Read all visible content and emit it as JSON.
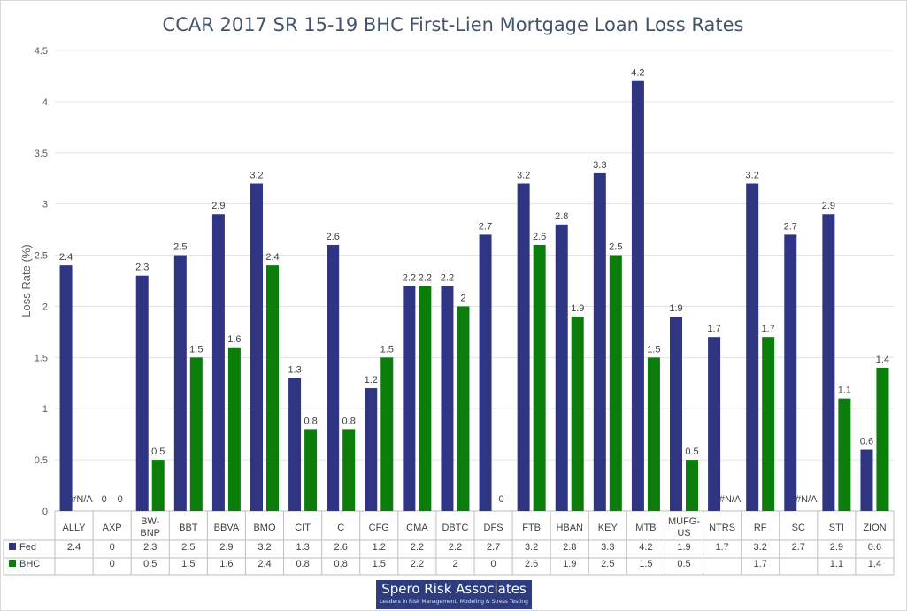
{
  "chart_data": {
    "type": "bar",
    "title": "CCAR 2017 SR 15-19 BHC First-Lien Mortgage Loan Loss Rates",
    "ylabel": "Loss Rate (%)",
    "xlabel": "",
    "ylim": [
      0,
      4.5
    ],
    "yticks": [
      "0",
      "0.5",
      "1",
      "1.5",
      "2",
      "2.5",
      "3",
      "3.5",
      "4",
      "4.5"
    ],
    "grid": true,
    "legend": "data table",
    "categories": [
      "ALLY",
      "AXP",
      "BW-BNP",
      "BBT",
      "BBVA",
      "BMO",
      "CIT",
      "C",
      "CFG",
      "CMA",
      "DBTC",
      "DFS",
      "FTB",
      "HBAN",
      "KEY",
      "MTB",
      "MUFG-US",
      "NTRS",
      "RF",
      "SC",
      "STI",
      "ZION"
    ],
    "series": [
      {
        "name": "Fed",
        "color": "#2f3582",
        "values": [
          2.4,
          0,
          2.3,
          2.5,
          2.9,
          3.2,
          1.3,
          2.6,
          1.2,
          2.2,
          2.2,
          2.7,
          3.2,
          2.8,
          3.3,
          4.2,
          1.9,
          1.7,
          3.2,
          2.7,
          2.9,
          0.6
        ],
        "labels": [
          "2.4",
          "0",
          "2.3",
          "2.5",
          "2.9",
          "3.2",
          "1.3",
          "2.6",
          "1.2",
          "2.2",
          "2.2",
          "2.7",
          "3.2",
          "2.8",
          "3.3",
          "4.2",
          "1.9",
          "1.7",
          "3.2",
          "2.7",
          "2.9",
          "0.6"
        ]
      },
      {
        "name": "BHC",
        "color": "#0a7d0a",
        "values": [
          null,
          0,
          0.5,
          1.5,
          1.6,
          2.4,
          0.8,
          0.8,
          1.5,
          2.2,
          2,
          0,
          2.6,
          1.9,
          2.5,
          1.5,
          0.5,
          null,
          1.7,
          null,
          1.1,
          1.4
        ],
        "labels": [
          "#N/A",
          "0",
          "0.5",
          "1.5",
          "1.6",
          "2.4",
          "0.8",
          "0.8",
          "1.5",
          "2.2",
          "2",
          "0",
          "2.6",
          "1.9",
          "2.5",
          "1.5",
          "0.5",
          "#N/A",
          "1.7",
          "#N/A",
          "1.1",
          "1.4"
        ]
      }
    ]
  },
  "watermark": {
    "name": "Spero Risk Associates",
    "tagline": "Leaders in Risk Management, Modeling & Stress Testing",
    "color": "#2e3d80"
  }
}
